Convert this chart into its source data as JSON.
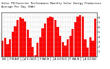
{
  "title": "Solar PV/Inverter Performance Monthly Solar Energy Production Average Per Day (KWh)",
  "bar_color": "#ff0000",
  "edge_color": "#880000",
  "background_color": "#ffffff",
  "grid_color": "#aaaaaa",
  "months": [
    "N",
    "D",
    "J",
    "F",
    "M",
    "A",
    "M",
    "J",
    "J",
    "A",
    "S",
    "O",
    "N",
    "D",
    "J",
    "F",
    "M",
    "A",
    "M",
    "J",
    "J",
    "A",
    "S",
    "O",
    "N",
    "D",
    "J",
    "F",
    "M",
    "A",
    "M",
    "J",
    "J",
    "A",
    "S",
    "O",
    "N",
    "D"
  ],
  "values": [
    3.2,
    3.8,
    2.5,
    3.5,
    5.0,
    6.2,
    7.5,
    8.0,
    7.8,
    7.2,
    5.5,
    3.8,
    2.0,
    0.3,
    2.8,
    3.9,
    5.8,
    6.8,
    7.9,
    8.2,
    8.0,
    7.5,
    6.0,
    4.2,
    3.0,
    2.2,
    3.5,
    4.2,
    5.6,
    7.0,
    8.1,
    8.5,
    8.2,
    3.5,
    1.8,
    4.0,
    3.2,
    7.8
  ],
  "ylim": [
    0,
    9
  ],
  "yticks": [
    1,
    2,
    3,
    4,
    5,
    6,
    7,
    8
  ],
  "ylabel_fontsize": 3.0,
  "xlabel_fontsize": 2.8,
  "title_fontsize": 2.8
}
